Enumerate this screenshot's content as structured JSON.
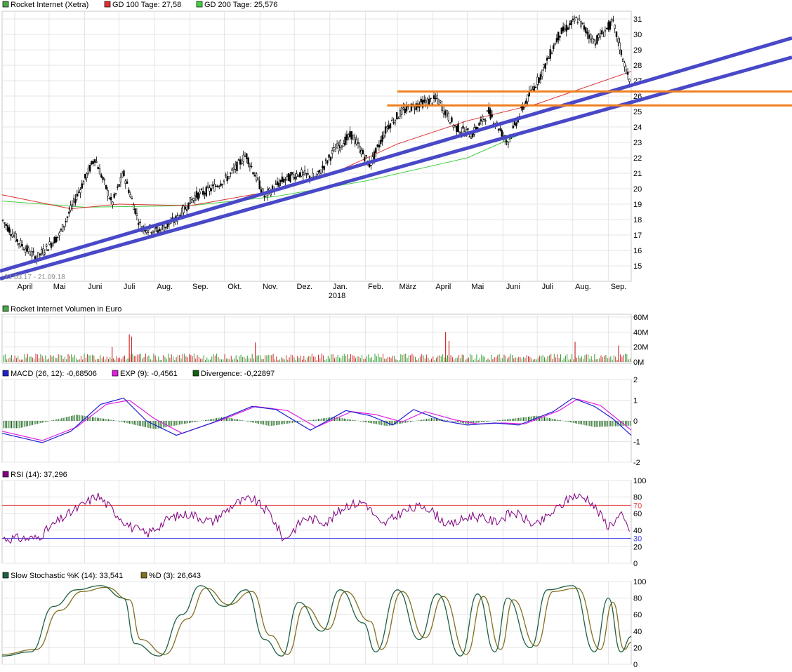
{
  "price_panel": {
    "legend": [
      {
        "label": "Rocket Internet (Xetra)",
        "color": "#48a848"
      },
      {
        "label": "GD 100 Tage: 27,58",
        "color": "#e03030"
      },
      {
        "label": "GD 200 Tage: 25,576",
        "color": "#40d040"
      }
    ],
    "date_range_label": "21.03.17 - 21.09.18",
    "x_months": [
      "April",
      "Mai",
      "Juni",
      "Juli",
      "Aug.",
      "Sep.",
      "Okt.",
      "Nov.",
      "Dez.",
      "Jan.",
      "Feb.",
      "März",
      "April",
      "Mai",
      "Juni",
      "Juli",
      "Aug.",
      "Sep."
    ],
    "year_label": "2018",
    "y_ticks": [
      15,
      16,
      17,
      18,
      19,
      20,
      21,
      22,
      23,
      24,
      25,
      26,
      27,
      28,
      29,
      30,
      31
    ]
  },
  "volume_panel": {
    "legend": [
      {
        "label": "Rocket Internet Volumen in Euro",
        "color": "#48a848"
      }
    ],
    "y_ticks": [
      "60M",
      "40M",
      "20M",
      "0M"
    ]
  },
  "macd_panel": {
    "legend": [
      {
        "label": "MACD (26, 12): -0,68506",
        "color": "#2020d0"
      },
      {
        "label": "EXP (9): -0,4561",
        "color": "#e020e0"
      },
      {
        "label": "Divergence: -0,22897",
        "color": "#106010"
      }
    ],
    "y_ticks": [
      "2",
      "1",
      "0",
      "-1",
      "-2"
    ]
  },
  "rsi_panel": {
    "legend": [
      {
        "label": "RSI (14): 37,296",
        "color": "#800080"
      }
    ],
    "y_ticks": [
      "100",
      "80",
      "60",
      "40",
      "20",
      "0"
    ],
    "upper_level_label": "70",
    "lower_level_label": "30"
  },
  "stoch_panel": {
    "legend": [
      {
        "label": "Slow Stochastic %K (14): 33,541",
        "color": "#206040"
      },
      {
        "label": "%D (3): 26,643",
        "color": "#807020"
      }
    ],
    "y_ticks": [
      "100",
      "80",
      "60",
      "40",
      "20",
      "0"
    ]
  },
  "chart_data": [
    {
      "type": "line",
      "title": "Rocket Internet (Xetra)",
      "x_range": [
        "21.03.17",
        "21.09.18"
      ],
      "ylim": [
        14,
        31.5
      ],
      "series": [
        {
          "name": "Rocket Internet (Xetra)",
          "x": [
            "2017-03-21",
            "2017-04-05",
            "2017-04-20",
            "2017-05-10",
            "2017-05-25",
            "2017-06-10",
            "2017-06-25",
            "2017-07-05",
            "2017-07-20",
            "2017-08-05",
            "2017-08-20",
            "2017-09-05",
            "2017-09-20",
            "2017-10-05",
            "2017-10-20",
            "2017-11-05",
            "2017-11-20",
            "2017-12-05",
            "2017-12-20",
            "2018-01-05",
            "2018-01-20",
            "2018-02-05",
            "2018-02-20",
            "2018-03-05",
            "2018-03-20",
            "2018-04-05",
            "2018-04-20",
            "2018-05-05",
            "2018-05-20",
            "2018-06-05",
            "2018-06-20",
            "2018-07-05",
            "2018-07-20",
            "2018-08-05",
            "2018-08-20",
            "2018-09-05",
            "2018-09-21"
          ],
          "values": [
            18.0,
            16.5,
            15.5,
            17.0,
            19.5,
            22.0,
            19.0,
            21.0,
            17.5,
            17.3,
            18.0,
            19.5,
            20.0,
            20.8,
            22.2,
            19.5,
            20.5,
            21.0,
            20.7,
            22.5,
            23.5,
            21.5,
            24.0,
            25.0,
            25.5,
            25.8,
            24.0,
            23.5,
            25.0,
            23.0,
            25.5,
            27.5,
            30.0,
            31.0,
            29.5,
            30.8,
            26.5
          ]
        },
        {
          "name": "GD 100 Tage: 27,58",
          "x": [
            "2017-03-21",
            "2017-05-20",
            "2017-07-01",
            "2017-09-01",
            "2017-11-01",
            "2018-01-01",
            "2018-03-01",
            "2018-05-01",
            "2018-07-01",
            "2018-09-21"
          ],
          "values": [
            19.6,
            18.7,
            19.0,
            18.9,
            19.7,
            20.9,
            22.9,
            24.4,
            25.5,
            27.6
          ]
        },
        {
          "name": "GD 200 Tage: 25,576",
          "x": [
            "2017-03-21",
            "2017-06-01",
            "2017-09-01",
            "2017-11-15",
            "2018-02-01",
            "2018-05-01",
            "2018-07-01",
            "2018-09-21"
          ],
          "values": [
            19.2,
            18.8,
            18.9,
            19.5,
            20.5,
            22.0,
            24.0,
            25.6
          ]
        }
      ],
      "trendlines": [
        {
          "color": "#4848c8",
          "from": {
            "x": "2017-03-21",
            "y": 14.7
          },
          "to": {
            "x": "2018-09-21",
            "y": 26.7
          }
        },
        {
          "color": "#4848c8",
          "from": {
            "x": "2017-03-21",
            "y": 14.2
          },
          "to": {
            "x": "2018-09-21",
            "y": 25.6
          }
        }
      ],
      "horizontal_lines": [
        {
          "color": "#f08020",
          "y": 26.3,
          "from": "2018-03-01"
        },
        {
          "color": "#f08020",
          "y": 25.4,
          "from": "2018-02-20"
        }
      ]
    },
    {
      "type": "bar",
      "title": "Rocket Internet Volumen in Euro",
      "ylim": [
        0,
        60
      ],
      "unit": "M",
      "spikes": [
        {
          "x": "2017-06-25",
          "value": 20
        },
        {
          "x": "2017-07-10",
          "value": 37
        },
        {
          "x": "2017-07-12",
          "value": 34
        },
        {
          "x": "2017-10-28",
          "value": 26
        },
        {
          "x": "2018-04-12",
          "value": 40
        },
        {
          "x": "2018-04-15",
          "value": 28
        },
        {
          "x": "2018-08-03",
          "value": 27
        },
        {
          "x": "2018-09-10",
          "value": 22
        }
      ],
      "typical_value": 8
    },
    {
      "type": "line",
      "title": "MACD",
      "ylim": [
        -2,
        2
      ],
      "series": [
        {
          "name": "MACD (26, 12): -0,68506",
          "x": [
            "2017-03-21",
            "2017-04-25",
            "2017-05-20",
            "2017-06-15",
            "2017-07-05",
            "2017-07-25",
            "2017-08-20",
            "2017-09-20",
            "2017-10-25",
            "2017-11-15",
            "2017-12-15",
            "2018-01-15",
            "2018-02-05",
            "2018-02-25",
            "2018-03-15",
            "2018-04-10",
            "2018-05-01",
            "2018-05-25",
            "2018-06-15",
            "2018-07-15",
            "2018-08-01",
            "2018-08-20",
            "2018-09-05",
            "2018-09-21"
          ],
          "values": [
            -0.6,
            -1.05,
            -0.5,
            0.8,
            1.1,
            0.0,
            -0.7,
            -0.1,
            0.7,
            0.55,
            -0.45,
            0.5,
            0.25,
            -0.2,
            0.55,
            0.0,
            -0.2,
            -0.1,
            -0.2,
            0.45,
            1.1,
            0.7,
            0.1,
            -0.7
          ]
        },
        {
          "name": "EXP (9): -0,4561",
          "x": [
            "2017-03-21",
            "2017-04-25",
            "2017-05-25",
            "2017-06-20",
            "2017-07-10",
            "2017-08-01",
            "2017-08-25",
            "2017-10-01",
            "2017-10-28",
            "2017-11-25",
            "2017-12-20",
            "2018-01-20",
            "2018-02-10",
            "2018-03-05",
            "2018-03-25",
            "2018-04-20",
            "2018-05-10",
            "2018-06-01",
            "2018-06-20",
            "2018-07-20",
            "2018-08-05",
            "2018-08-25",
            "2018-09-21"
          ],
          "values": [
            -0.5,
            -0.95,
            -0.3,
            0.8,
            1.0,
            0.1,
            -0.6,
            0.1,
            0.7,
            0.5,
            -0.3,
            0.45,
            0.3,
            -0.05,
            0.45,
            0.05,
            -0.15,
            -0.1,
            -0.15,
            0.5,
            1.05,
            0.75,
            -0.45
          ]
        },
        {
          "name": "Divergence: -0,22897",
          "type": "bar",
          "x": [
            "2017-04-05",
            "2017-05-25",
            "2017-06-25",
            "2017-08-01",
            "2017-10-01",
            "2017-11-10",
            "2018-01-05",
            "2018-02-20",
            "2018-04-01",
            "2018-05-01",
            "2018-07-01",
            "2018-08-20",
            "2018-09-21"
          ],
          "values": [
            -0.35,
            0.3,
            0.05,
            -0.4,
            0.2,
            -0.25,
            0.2,
            -0.25,
            0.15,
            -0.15,
            0.25,
            -0.3,
            -0.23
          ]
        }
      ]
    },
    {
      "type": "line",
      "title": "RSI (14): 37,296",
      "ylim": [
        0,
        100
      ],
      "levels": [
        70,
        30
      ],
      "series": [
        {
          "name": "RSI (14): 37,296",
          "x": [
            "2017-03-21",
            "2017-04-20",
            "2017-05-10",
            "2017-06-01",
            "2017-06-12",
            "2017-06-25",
            "2017-07-10",
            "2017-07-25",
            "2017-08-15",
            "2017-09-01",
            "2017-09-20",
            "2017-10-10",
            "2017-10-25",
            "2017-11-10",
            "2017-11-22",
            "2017-12-10",
            "2017-12-30",
            "2018-01-15",
            "2018-02-01",
            "2018-02-15",
            "2018-03-05",
            "2018-03-25",
            "2018-04-15",
            "2018-05-05",
            "2018-05-25",
            "2018-06-10",
            "2018-06-30",
            "2018-07-20",
            "2018-08-01",
            "2018-08-15",
            "2018-09-01",
            "2018-09-12",
            "2018-09-21"
          ],
          "values": [
            30,
            30,
            52,
            72,
            82,
            65,
            45,
            35,
            55,
            60,
            50,
            72,
            78,
            60,
            28,
            55,
            50,
            70,
            74,
            45,
            62,
            70,
            45,
            58,
            50,
            62,
            45,
            68,
            82,
            78,
            45,
            58,
            37.3
          ]
        }
      ]
    },
    {
      "type": "line",
      "title": "Slow Stochastic",
      "ylim": [
        0,
        100
      ],
      "series": [
        {
          "name": "Slow Stochastic %K (14): 33,541",
          "x": [
            "2017-03-21",
            "2017-04-15",
            "2017-05-05",
            "2017-05-25",
            "2017-06-15",
            "2017-07-05",
            "2017-07-15",
            "2017-08-05",
            "2017-08-25",
            "2017-09-10",
            "2017-10-01",
            "2017-10-20",
            "2017-11-05",
            "2017-11-20",
            "2017-12-05",
            "2017-12-25",
            "2018-01-10",
            "2018-01-30",
            "2018-02-10",
            "2018-03-01",
            "2018-03-20",
            "2018-04-05",
            "2018-04-25",
            "2018-05-10",
            "2018-05-25",
            "2018-06-05",
            "2018-06-25",
            "2018-07-10",
            "2018-08-01",
            "2018-08-20",
            "2018-09-01",
            "2018-09-12",
            "2018-09-21"
          ],
          "values": [
            10,
            15,
            70,
            90,
            95,
            80,
            25,
            10,
            60,
            95,
            70,
            90,
            30,
            10,
            75,
            40,
            90,
            50,
            15,
            90,
            30,
            85,
            10,
            85,
            15,
            80,
            20,
            90,
            95,
            15,
            80,
            15,
            33.5
          ]
        },
        {
          "name": "%D (3): 26,643",
          "x": [
            "2017-03-21",
            "2017-04-20",
            "2017-05-10",
            "2017-05-30",
            "2017-06-20",
            "2017-07-10",
            "2017-07-20",
            "2017-08-10",
            "2017-08-30",
            "2017-09-15",
            "2017-10-05",
            "2017-10-25",
            "2017-11-10",
            "2017-11-25",
            "2017-12-10",
            "2017-12-30",
            "2018-01-15",
            "2018-02-05",
            "2018-02-15",
            "2018-03-05",
            "2018-03-25",
            "2018-04-10",
            "2018-04-30",
            "2018-05-15",
            "2018-05-30",
            "2018-06-10",
            "2018-06-30",
            "2018-07-15",
            "2018-08-05",
            "2018-08-25",
            "2018-09-05",
            "2018-09-15",
            "2018-09-21"
          ],
          "values": [
            12,
            18,
            65,
            88,
            93,
            78,
            30,
            12,
            55,
            92,
            72,
            88,
            35,
            12,
            70,
            42,
            88,
            52,
            18,
            88,
            32,
            82,
            12,
            82,
            18,
            78,
            22,
            88,
            92,
            18,
            75,
            18,
            26.6
          ]
        }
      ]
    }
  ]
}
